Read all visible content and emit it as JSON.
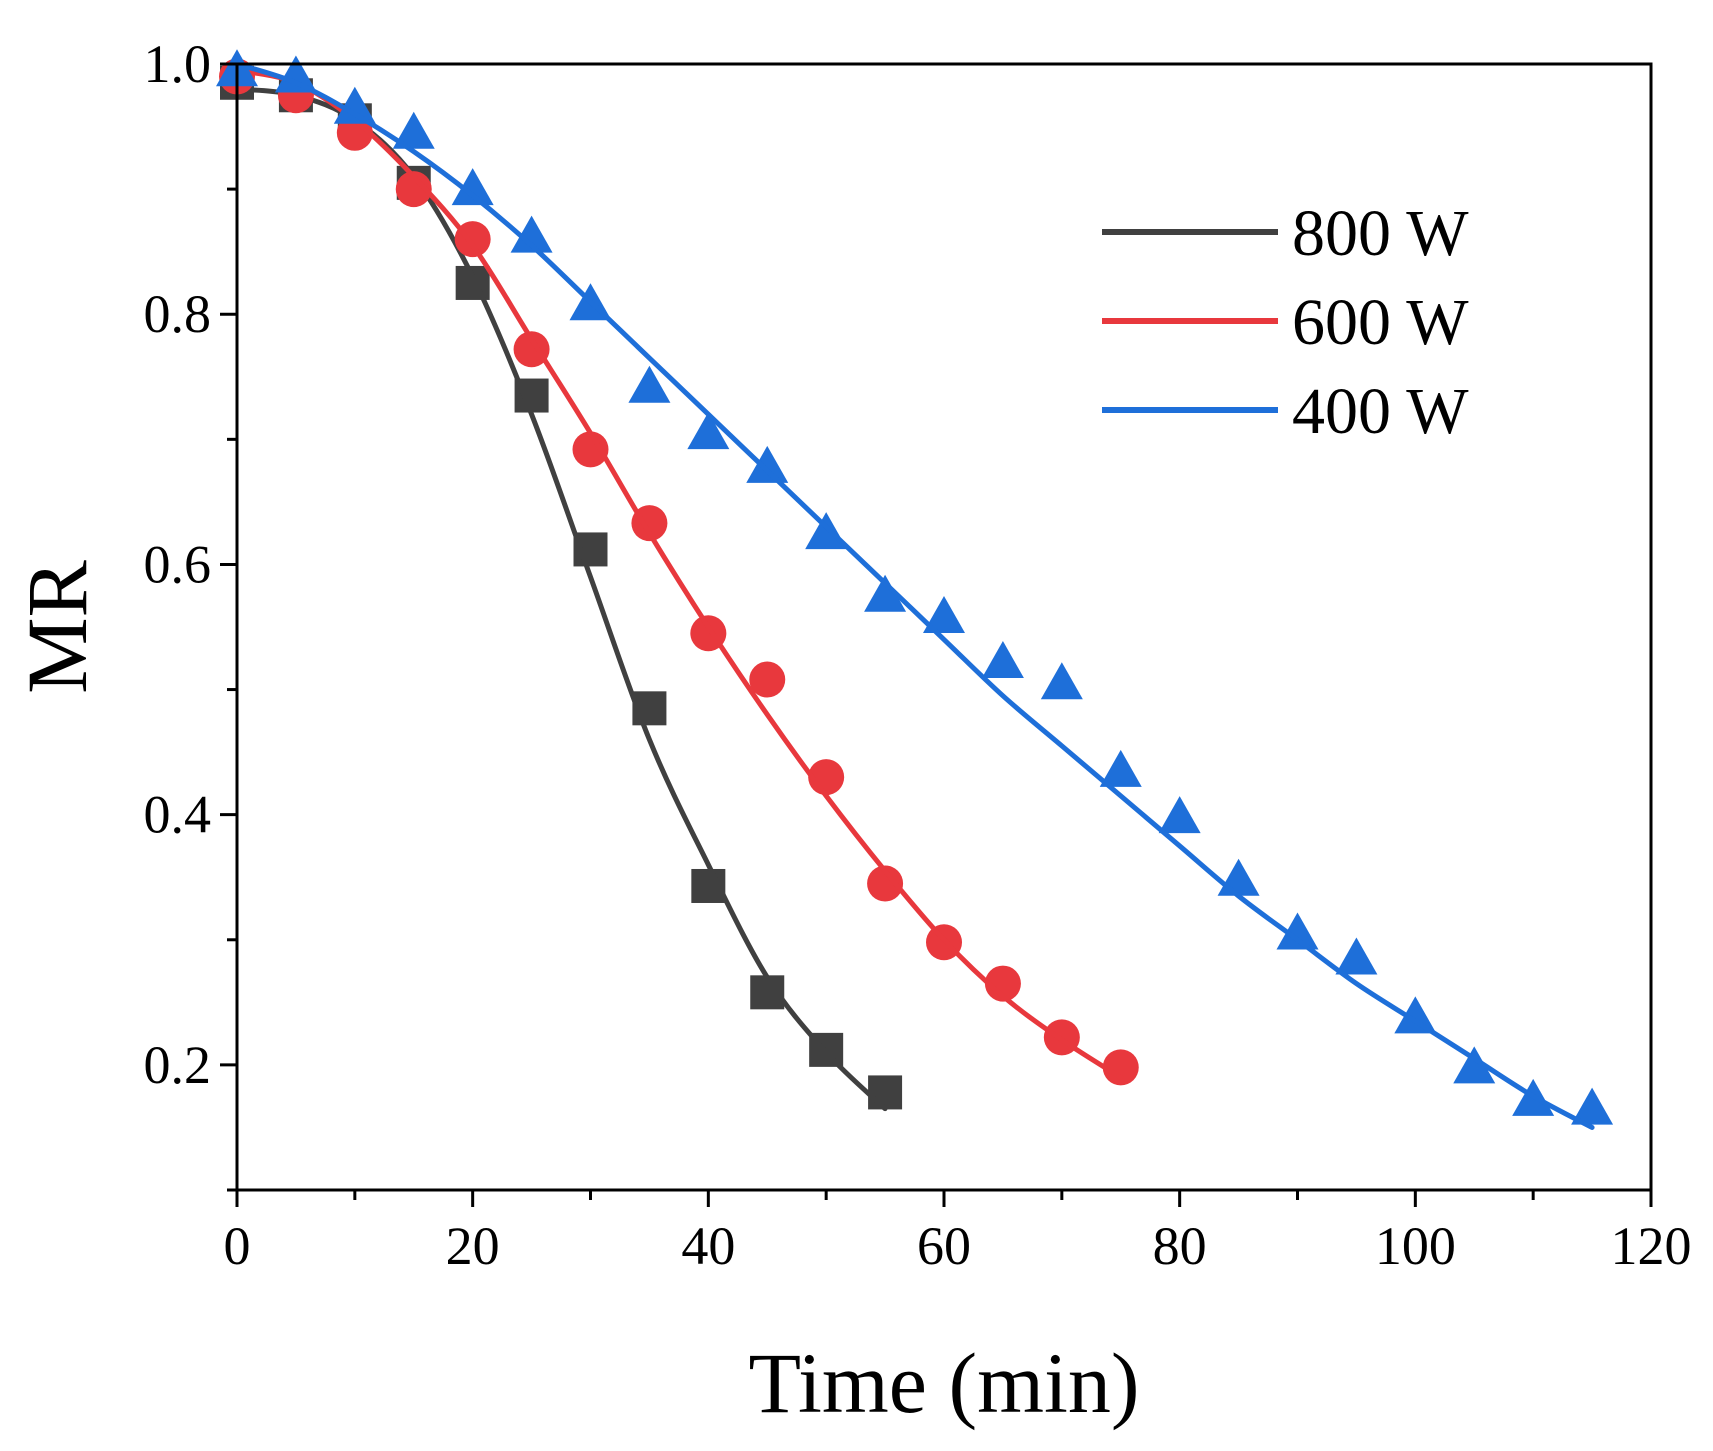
{
  "chart_data": {
    "type": "scatter",
    "title": "",
    "xlabel": "Time (min)",
    "ylabel": "MR",
    "xlim": [
      0,
      120
    ],
    "ylim": [
      0.1,
      1.0
    ],
    "xticks": [
      0,
      20,
      40,
      60,
      80,
      100,
      120
    ],
    "xtick_labels": [
      "0",
      "20",
      "40",
      "60",
      "80",
      "100",
      "120"
    ],
    "yticks": [
      0.2,
      0.4,
      0.6,
      0.8,
      1.0
    ],
    "ytick_labels": [
      "0.2",
      "0.4",
      "0.6",
      "0.8",
      "1.0"
    ],
    "grid": false,
    "legend_position": "top-right",
    "series": [
      {
        "name": "800 W",
        "color": "#404040",
        "marker": "square",
        "x": [
          0,
          5,
          10,
          15,
          20,
          25,
          30,
          35,
          40,
          45,
          50,
          55
        ],
        "y": [
          0.985,
          0.975,
          0.955,
          0.905,
          0.825,
          0.735,
          0.612,
          0.485,
          0.343,
          0.258,
          0.212,
          0.178
        ],
        "fit_x": [
          0,
          5,
          10,
          15,
          20,
          25,
          30,
          35,
          40,
          45,
          50,
          55
        ],
        "fit_y": [
          0.98,
          0.975,
          0.955,
          0.91,
          0.83,
          0.72,
          0.59,
          0.46,
          0.36,
          0.27,
          0.21,
          0.165
        ]
      },
      {
        "name": "600 W",
        "color": "#e8383d",
        "marker": "circle",
        "x": [
          0,
          5,
          10,
          15,
          20,
          25,
          30,
          35,
          40,
          45,
          50,
          55,
          60,
          65,
          70,
          75
        ],
        "y": [
          0.99,
          0.975,
          0.945,
          0.9,
          0.86,
          0.772,
          0.692,
          0.633,
          0.545,
          0.508,
          0.43,
          0.345,
          0.298,
          0.265,
          0.222,
          0.198
        ],
        "fit_x": [
          0,
          5,
          10,
          15,
          20,
          25,
          30,
          35,
          40,
          45,
          50,
          55,
          60,
          65,
          70,
          75
        ],
        "fit_y": [
          0.995,
          0.985,
          0.955,
          0.91,
          0.855,
          0.78,
          0.705,
          0.625,
          0.55,
          0.48,
          0.415,
          0.355,
          0.3,
          0.255,
          0.22,
          0.19
        ]
      },
      {
        "name": "400 W",
        "color": "#1e6fd9",
        "marker": "triangle",
        "x": [
          0,
          5,
          10,
          15,
          20,
          25,
          30,
          35,
          40,
          45,
          50,
          55,
          60,
          65,
          70,
          75,
          80,
          85,
          90,
          95,
          100,
          105,
          110,
          115
        ],
        "y": [
          0.995,
          0.99,
          0.965,
          0.945,
          0.9,
          0.862,
          0.808,
          0.742,
          0.705,
          0.678,
          0.625,
          0.575,
          0.558,
          0.522,
          0.505,
          0.435,
          0.398,
          0.348,
          0.305,
          0.285,
          0.238,
          0.198,
          0.172,
          0.165
        ],
        "fit_x": [
          0,
          5,
          10,
          15,
          20,
          25,
          30,
          35,
          40,
          45,
          50,
          55,
          60,
          65,
          70,
          75,
          80,
          85,
          90,
          95,
          100,
          105,
          110,
          115
        ],
        "fit_y": [
          1.0,
          0.985,
          0.96,
          0.93,
          0.895,
          0.855,
          0.81,
          0.765,
          0.72,
          0.675,
          0.63,
          0.585,
          0.54,
          0.495,
          0.455,
          0.415,
          0.375,
          0.335,
          0.3,
          0.265,
          0.235,
          0.205,
          0.175,
          0.15
        ]
      }
    ]
  }
}
